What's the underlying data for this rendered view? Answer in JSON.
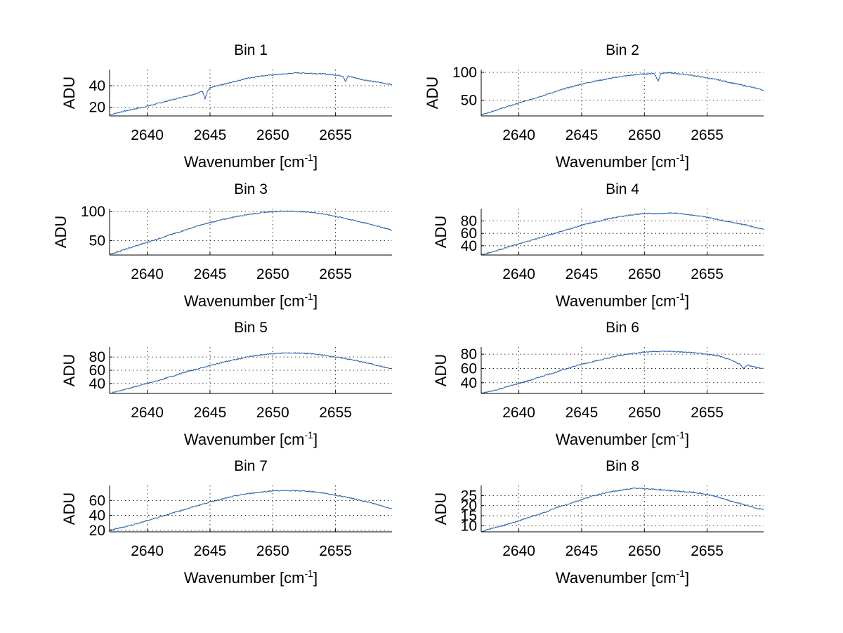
{
  "figure": {
    "line_color": "#1f5fa8",
    "grid_color": "#000000",
    "grid": "dotted"
  },
  "chart_data": [
    {
      "type": "line",
      "title": "Bin 1",
      "xlabel": "Wavenumber [cm",
      "xlabel_sup": "-1",
      "xlabel_end": "]",
      "ylabel": "ADU",
      "xlim": [
        2637,
        2659.5
      ],
      "ylim": [
        12,
        55
      ],
      "xticks": [
        2640,
        2645,
        2650,
        2655
      ],
      "yticks": [
        20,
        40
      ],
      "series": [
        {
          "x": [
            2637,
            2638,
            2639,
            2640,
            2641,
            2642,
            2643,
            2644,
            2644.4,
            2644.6,
            2644.8,
            2645,
            2646,
            2647,
            2648,
            2649,
            2650,
            2651,
            2652,
            2653,
            2654,
            2655,
            2655.6,
            2655.8,
            2656,
            2657,
            2658,
            2659,
            2659.5
          ],
          "y": [
            13,
            16,
            18.5,
            21,
            24,
            27,
            30,
            33,
            35,
            28,
            35,
            38,
            41,
            44,
            47,
            49,
            50,
            51,
            52,
            51.5,
            51,
            50,
            49,
            44,
            49,
            46,
            44,
            42,
            41
          ]
        }
      ]
    },
    {
      "type": "line",
      "title": "Bin 2",
      "xlabel": "Wavenumber [cm",
      "xlabel_sup": "-1",
      "xlabel_end": "]",
      "ylabel": "ADU",
      "xlim": [
        2637,
        2659.5
      ],
      "ylim": [
        22,
        105
      ],
      "xticks": [
        2640,
        2645,
        2650,
        2655
      ],
      "yticks": [
        50,
        100
      ],
      "series": [
        {
          "x": [
            2637,
            2638,
            2639,
            2640,
            2641,
            2642,
            2643,
            2644,
            2645,
            2646,
            2647,
            2648,
            2649,
            2650,
            2650.8,
            2651.1,
            2651.3,
            2651.6,
            2652,
            2653,
            2654,
            2655,
            2656,
            2657,
            2658,
            2659,
            2659.5
          ],
          "y": [
            24,
            31,
            38,
            45,
            52,
            59,
            66,
            73,
            79,
            84,
            88,
            92,
            95,
            97,
            98,
            84,
            98,
            99,
            99,
            97,
            94,
            90,
            86,
            81,
            76,
            71,
            68
          ]
        }
      ]
    },
    {
      "type": "line",
      "title": "Bin 3",
      "xlabel": "Wavenumber [cm",
      "xlabel_sup": "-1",
      "xlabel_end": "]",
      "ylabel": "ADU",
      "xlim": [
        2637,
        2659.5
      ],
      "ylim": [
        25,
        105
      ],
      "xticks": [
        2640,
        2645,
        2650,
        2655
      ],
      "yticks": [
        50,
        100
      ],
      "series": [
        {
          "x": [
            2637,
            2638,
            2639,
            2640,
            2641,
            2642,
            2643,
            2644,
            2645,
            2646,
            2647,
            2648,
            2649,
            2650,
            2651,
            2652,
            2653,
            2654,
            2655,
            2656,
            2657,
            2658,
            2659,
            2659.5
          ],
          "y": [
            26,
            33,
            40,
            47,
            54,
            61,
            68,
            75,
            81,
            86,
            91,
            95,
            98,
            100,
            101,
            100,
            99,
            96,
            92,
            87,
            82,
            77,
            71,
            68
          ]
        }
      ]
    },
    {
      "type": "line",
      "title": "Bin 4",
      "xlabel": "Wavenumber [cm",
      "xlabel_sup": "-1",
      "xlabel_end": "]",
      "ylabel": "ADU",
      "xlim": [
        2637,
        2659.5
      ],
      "ylim": [
        25,
        100
      ],
      "xticks": [
        2640,
        2645,
        2650,
        2655
      ],
      "yticks": [
        40,
        60,
        80
      ],
      "series": [
        {
          "x": [
            2637,
            2638,
            2639,
            2640,
            2641,
            2642,
            2643,
            2644,
            2645,
            2646,
            2647,
            2648,
            2649,
            2650,
            2651,
            2652,
            2653,
            2654,
            2655,
            2656,
            2657,
            2658,
            2659,
            2659.5
          ],
          "y": [
            25,
            31,
            37,
            43,
            49,
            55,
            61,
            67,
            73,
            78,
            83,
            87,
            90,
            92,
            92,
            93,
            92,
            89,
            86,
            82,
            78,
            74,
            69,
            67
          ]
        }
      ]
    },
    {
      "type": "line",
      "title": "Bin 5",
      "xlabel": "Wavenumber [cm",
      "xlabel_sup": "-1",
      "xlabel_end": "]",
      "ylabel": "ADU",
      "xlim": [
        2637,
        2659.5
      ],
      "ylim": [
        25,
        95
      ],
      "xticks": [
        2640,
        2645,
        2650,
        2655
      ],
      "yticks": [
        40,
        60,
        80
      ],
      "series": [
        {
          "x": [
            2637,
            2638,
            2639,
            2640,
            2641,
            2642,
            2643,
            2644,
            2645,
            2646,
            2647,
            2648,
            2649,
            2650,
            2651,
            2652,
            2653,
            2654,
            2655,
            2656,
            2657,
            2658,
            2659,
            2659.5
          ],
          "y": [
            25,
            30,
            35,
            40,
            45,
            51,
            57,
            62,
            67,
            72,
            76,
            80,
            83,
            85,
            86,
            86,
            85,
            83,
            80,
            77,
            73,
            69,
            64,
            62
          ]
        }
      ]
    },
    {
      "type": "line",
      "title": "Bin 6",
      "xlabel": "Wavenumber [cm",
      "xlabel_sup": "-1",
      "xlabel_end": "]",
      "ylabel": "ADU",
      "xlim": [
        2637,
        2659.5
      ],
      "ylim": [
        25,
        90
      ],
      "xticks": [
        2640,
        2645,
        2650,
        2655
      ],
      "yticks": [
        40,
        60,
        80
      ],
      "series": [
        {
          "x": [
            2637,
            2638,
            2639,
            2640,
            2641,
            2642,
            2643,
            2644,
            2645,
            2646,
            2647,
            2648,
            2649,
            2650,
            2651,
            2652,
            2653,
            2654,
            2655,
            2656,
            2657,
            2657.6,
            2657.9,
            2658.2,
            2659,
            2659.5
          ],
          "y": [
            25,
            29,
            34,
            39,
            44,
            50,
            55,
            61,
            66,
            70,
            74,
            78,
            81,
            83,
            84,
            84,
            83,
            82,
            80,
            77,
            71,
            66,
            60,
            65,
            61,
            60
          ]
        }
      ]
    },
    {
      "type": "line",
      "title": "Bin 7",
      "xlabel": "Wavenumber [cm",
      "xlabel_sup": "-1",
      "xlabel_end": "]",
      "ylabel": "ADU",
      "xlim": [
        2637,
        2659.5
      ],
      "ylim": [
        18,
        80
      ],
      "xticks": [
        2640,
        2645,
        2650,
        2655
      ],
      "yticks": [
        20,
        40,
        60
      ],
      "series": [
        {
          "x": [
            2637,
            2638,
            2639,
            2640,
            2641,
            2642,
            2643,
            2644,
            2645,
            2646,
            2647,
            2648,
            2649,
            2650,
            2651,
            2652,
            2653,
            2654,
            2655,
            2656,
            2657,
            2658,
            2659,
            2659.5
          ],
          "y": [
            20,
            24,
            28,
            33,
            38,
            43,
            48,
            53,
            58,
            62,
            66,
            69,
            71,
            73,
            73,
            73,
            72,
            70,
            67,
            64,
            60,
            56,
            51,
            49
          ]
        }
      ]
    },
    {
      "type": "line",
      "title": "Bin 8",
      "xlabel": "Wavenumber [cm",
      "xlabel_sup": "-1",
      "xlabel_end": "]",
      "ylabel": "ADU",
      "xlim": [
        2637,
        2659.5
      ],
      "ylim": [
        7,
        30
      ],
      "xticks": [
        2640,
        2645,
        2650,
        2655
      ],
      "yticks": [
        10,
        15,
        20,
        25
      ],
      "series": [
        {
          "x": [
            2637,
            2638,
            2639,
            2640,
            2641,
            2642,
            2643,
            2644,
            2645,
            2646,
            2647,
            2648,
            2649,
            2650,
            2651,
            2652,
            2653,
            2654,
            2655,
            2656,
            2657,
            2658,
            2659,
            2659.5
          ],
          "y": [
            7,
            9,
            10.5,
            12.5,
            14.5,
            16.5,
            19,
            21,
            23,
            25,
            26.5,
            27.5,
            28.5,
            28.5,
            28,
            27.5,
            27,
            26.5,
            25.5,
            24,
            22,
            20.5,
            18.5,
            18
          ]
        }
      ]
    }
  ]
}
